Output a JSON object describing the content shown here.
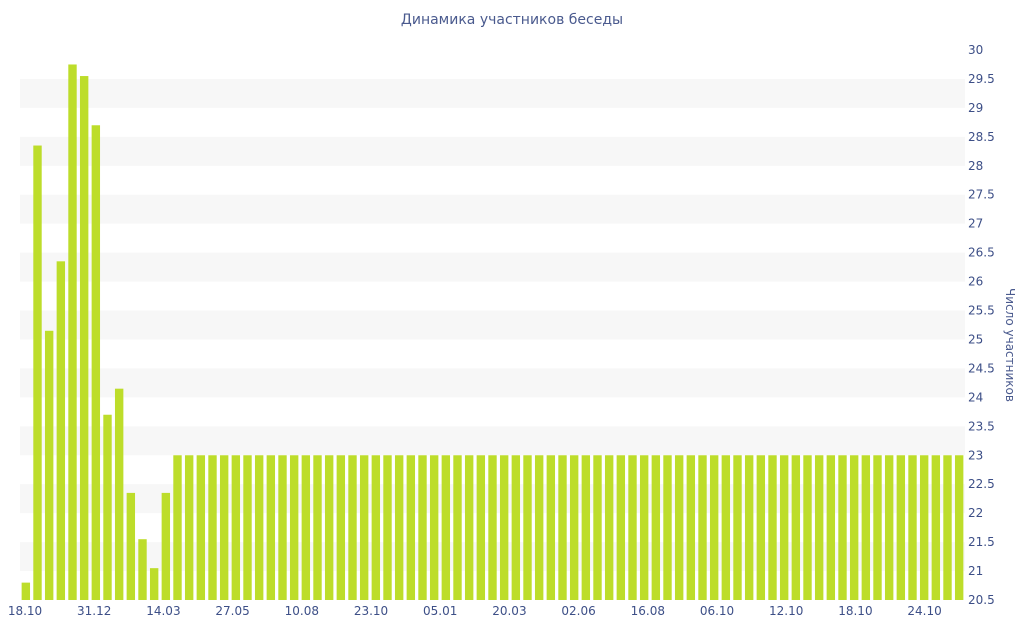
{
  "chart_data": {
    "type": "bar",
    "title": "Динамика участников беседы",
    "xlabel": "",
    "ylabel": "Число участников",
    "y_axis_side": "right",
    "ylim": [
      20.5,
      30
    ],
    "yticks": [
      "20.5",
      "21",
      "21.5",
      "22",
      "22.5",
      "23",
      "23.5",
      "24",
      "24.5",
      "25",
      "25.5",
      "26",
      "26.5",
      "27",
      "27.5",
      "28",
      "28.5",
      "29",
      "29.5",
      "30"
    ],
    "xticks": [
      "18.10",
      "31.12",
      "14.03",
      "27.05",
      "10.08",
      "23.10",
      "05.01",
      "20.03",
      "02.06",
      "16.08",
      "06.10",
      "12.10",
      "18.10",
      "24.10"
    ],
    "bar_color": "#bddd2a",
    "grid": "horizontal alternating bands",
    "values": [
      20.8,
      28.35,
      25.15,
      26.35,
      29.75,
      29.55,
      28.7,
      23.7,
      24.15,
      22.35,
      21.55,
      21.05,
      22.35,
      23,
      23,
      23,
      23,
      23,
      23,
      23,
      23,
      23,
      23,
      23,
      23,
      23,
      23,
      23,
      23,
      23,
      23,
      23,
      23,
      23,
      23,
      23,
      23,
      23,
      23,
      23,
      23,
      23,
      23,
      23,
      23,
      23,
      23,
      23,
      23,
      23,
      23,
      23,
      23,
      23,
      23,
      23,
      23,
      23,
      23,
      23,
      23,
      23,
      23,
      23,
      23,
      23,
      23,
      23,
      23,
      23,
      23,
      23,
      23,
      23,
      23,
      23,
      23,
      23,
      23,
      23,
      23
    ]
  }
}
